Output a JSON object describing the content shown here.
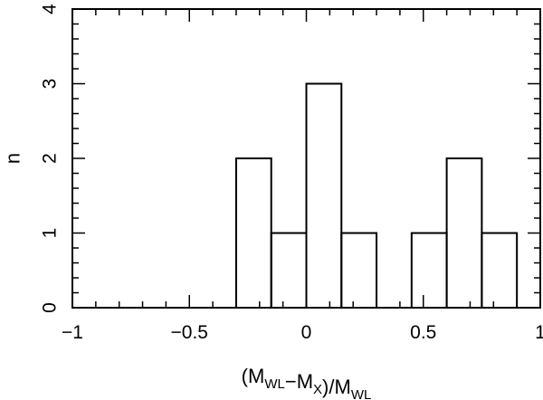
{
  "chart_data": {
    "type": "bar",
    "subtype": "histogram",
    "title": "",
    "xlabel": "(M_WL - M_X)/M_WL",
    "ylabel": "n",
    "xlim": [
      -1,
      1
    ],
    "ylim": [
      0,
      4
    ],
    "x_ticks": [
      "-1",
      "-0.5",
      "0",
      "0.5",
      "1"
    ],
    "y_ticks": [
      "0",
      "1",
      "2",
      "3",
      "4"
    ],
    "bin_width": 0.15,
    "bins": [
      {
        "x0": -0.3,
        "x1": -0.15,
        "count": 2
      },
      {
        "x0": -0.15,
        "x1": 0.0,
        "count": 1
      },
      {
        "x0": 0.0,
        "x1": 0.15,
        "count": 3
      },
      {
        "x0": 0.15,
        "x1": 0.3,
        "count": 1
      },
      {
        "x0": 0.3,
        "x1": 0.45,
        "count": 0
      },
      {
        "x0": 0.45,
        "x1": 0.6,
        "count": 1
      },
      {
        "x0": 0.6,
        "x1": 0.75,
        "count": 2
      },
      {
        "x0": 0.75,
        "x1": 0.9,
        "count": 1
      }
    ],
    "grid": false,
    "legend": "none"
  }
}
